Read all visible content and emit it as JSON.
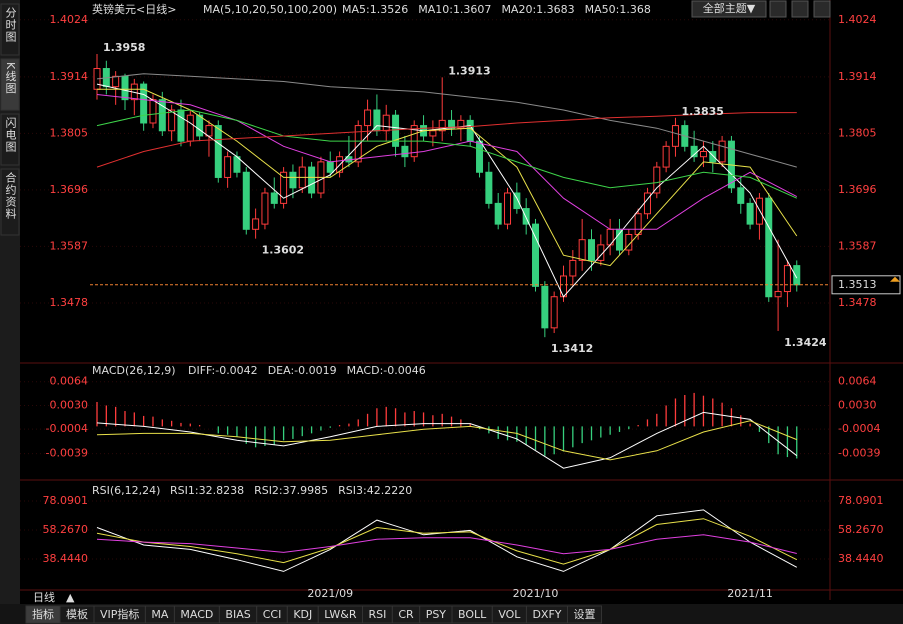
{
  "chart_data": [
    {
      "type": "candlestick",
      "title": "英镑美元<日线>",
      "indicator": "MA(5,10,20,50,100,200)",
      "up_color": "#ff3c3c",
      "down_color": "#36d07e",
      "ylim": [
        1.3368,
        1.4039
      ],
      "yticks": [
        1.4024,
        1.3914,
        1.3805,
        1.3696,
        1.3587,
        1.3478
      ],
      "grid": true,
      "candles": [
        [
          1.389,
          1.3958,
          1.387,
          1.393
        ],
        [
          1.393,
          1.3945,
          1.388,
          1.3895
        ],
        [
          1.3895,
          1.3925,
          1.386,
          1.3915
        ],
        [
          1.3915,
          1.392,
          1.385,
          1.387
        ],
        [
          1.387,
          1.391,
          1.384,
          1.39
        ],
        [
          1.39,
          1.3905,
          1.381,
          1.3825
        ],
        [
          1.3825,
          1.388,
          1.3815,
          1.387
        ],
        [
          1.387,
          1.3885,
          1.38,
          1.381
        ],
        [
          1.381,
          1.386,
          1.379,
          1.385
        ],
        [
          1.385,
          1.387,
          1.378,
          1.379
        ],
        [
          1.379,
          1.385,
          1.378,
          1.384
        ],
        [
          1.384,
          1.3845,
          1.379,
          1.38
        ],
        [
          1.38,
          1.383,
          1.376,
          1.382
        ],
        [
          1.382,
          1.383,
          1.371,
          1.372
        ],
        [
          1.372,
          1.377,
          1.37,
          1.376
        ],
        [
          1.376,
          1.377,
          1.372,
          1.373
        ],
        [
          1.373,
          1.374,
          1.361,
          1.362
        ],
        [
          1.362,
          1.366,
          1.3602,
          1.364
        ],
        [
          1.363,
          1.37,
          1.362,
          1.369
        ],
        [
          1.369,
          1.372,
          1.366,
          1.367
        ],
        [
          1.367,
          1.374,
          1.366,
          1.373
        ],
        [
          1.373,
          1.3745,
          1.368,
          1.37
        ],
        [
          1.37,
          1.376,
          1.369,
          1.374
        ],
        [
          1.374,
          1.375,
          1.368,
          1.369
        ],
        [
          1.369,
          1.376,
          1.368,
          1.375
        ],
        [
          1.375,
          1.377,
          1.372,
          1.373
        ],
        [
          1.373,
          1.377,
          1.372,
          1.376
        ],
        [
          1.376,
          1.38,
          1.374,
          1.375
        ],
        [
          1.375,
          1.383,
          1.374,
          1.382
        ],
        [
          1.382,
          1.387,
          1.379,
          1.385
        ],
        [
          1.385,
          1.388,
          1.38,
          1.381
        ],
        [
          1.381,
          1.386,
          1.379,
          1.384
        ],
        [
          1.384,
          1.385,
          1.376,
          1.378
        ],
        [
          1.378,
          1.38,
          1.374,
          1.376
        ],
        [
          1.376,
          1.383,
          1.375,
          1.382
        ],
        [
          1.382,
          1.384,
          1.379,
          1.38
        ],
        [
          1.38,
          1.383,
          1.378,
          1.381
        ],
        [
          1.381,
          1.3913,
          1.379,
          1.383
        ],
        [
          1.383,
          1.385,
          1.38,
          1.3815
        ],
        [
          1.3815,
          1.384,
          1.379,
          1.383
        ],
        [
          1.383,
          1.384,
          1.378,
          1.379
        ],
        [
          1.379,
          1.38,
          1.372,
          1.373
        ],
        [
          1.373,
          1.375,
          1.366,
          1.367
        ],
        [
          1.367,
          1.369,
          1.362,
          1.363
        ],
        [
          1.363,
          1.37,
          1.362,
          1.369
        ],
        [
          1.369,
          1.371,
          1.365,
          1.366
        ],
        [
          1.366,
          1.368,
          1.361,
          1.363
        ],
        [
          1.363,
          1.364,
          1.35,
          1.351
        ],
        [
          1.351,
          1.352,
          1.3412,
          1.343
        ],
        [
          1.343,
          1.35,
          1.342,
          1.349
        ],
        [
          1.349,
          1.355,
          1.348,
          1.353
        ],
        [
          1.353,
          1.358,
          1.351,
          1.356
        ],
        [
          1.356,
          1.364,
          1.354,
          1.36
        ],
        [
          1.36,
          1.362,
          1.354,
          1.356
        ],
        [
          1.356,
          1.361,
          1.355,
          1.359
        ],
        [
          1.359,
          1.364,
          1.357,
          1.362
        ],
        [
          1.362,
          1.364,
          1.357,
          1.358
        ],
        [
          1.358,
          1.362,
          1.357,
          1.361
        ],
        [
          1.361,
          1.366,
          1.36,
          1.365
        ],
        [
          1.365,
          1.37,
          1.364,
          1.369
        ],
        [
          1.369,
          1.375,
          1.368,
          1.374
        ],
        [
          1.374,
          1.379,
          1.373,
          1.378
        ],
        [
          1.378,
          1.3835,
          1.376,
          1.382
        ],
        [
          1.382,
          1.383,
          1.377,
          1.378
        ],
        [
          1.378,
          1.381,
          1.375,
          1.376
        ],
        [
          1.376,
          1.379,
          1.374,
          1.377
        ],
        [
          1.377,
          1.379,
          1.373,
          1.375
        ],
        [
          1.375,
          1.38,
          1.374,
          1.379
        ],
        [
          1.379,
          1.38,
          1.369,
          1.37
        ],
        [
          1.37,
          1.372,
          1.365,
          1.367
        ],
        [
          1.367,
          1.368,
          1.362,
          1.363
        ],
        [
          1.363,
          1.369,
          1.36,
          1.368
        ],
        [
          1.368,
          1.369,
          1.348,
          1.349
        ],
        [
          1.349,
          1.36,
          1.3424,
          1.35
        ],
        [
          1.35,
          1.356,
          1.347,
          1.355
        ],
        [
          1.355,
          1.356,
          1.35,
          1.3513
        ]
      ],
      "categories": [
        null,
        null,
        null,
        null,
        null,
        null,
        null,
        null,
        null,
        null,
        null,
        null,
        null,
        null,
        null,
        null,
        null,
        null,
        null,
        null,
        null,
        null,
        null,
        null,
        null,
        "2021/09",
        null,
        null,
        null,
        null,
        null,
        null,
        null,
        null,
        null,
        null,
        null,
        null,
        null,
        null,
        null,
        null,
        null,
        null,
        null,
        null,
        null,
        "2021/10",
        null,
        null,
        null,
        null,
        null,
        null,
        null,
        null,
        null,
        null,
        null,
        null,
        null,
        null,
        null,
        null,
        null,
        null,
        null,
        null,
        null,
        null,
        "2021/11",
        null,
        null,
        null,
        null,
        null
      ],
      "x": [
        0,
        5,
        10,
        15,
        20,
        25,
        30,
        35,
        40,
        45,
        50,
        55,
        60,
        65,
        70,
        75
      ],
      "series": [
        {
          "name": "MA5:1.3526",
          "color": "#ffffff",
          "values": [
            1.39,
            1.388,
            1.3825,
            1.376,
            1.368,
            1.3725,
            1.382,
            1.381,
            1.382,
            1.368,
            1.349,
            1.359,
            1.37,
            1.378,
            1.369,
            1.3526
          ]
        },
        {
          "name": "MA10:1.3607",
          "color": "#e8e04a",
          "values": [
            1.389,
            1.389,
            1.385,
            1.379,
            1.372,
            1.372,
            1.378,
            1.381,
            1.3815,
            1.374,
            1.357,
            1.355,
            1.365,
            1.375,
            1.374,
            1.3607
          ]
        },
        {
          "name": "MA20:1.3683",
          "color": "#e040e0",
          "values": [
            1.388,
            1.387,
            1.386,
            1.383,
            1.378,
            1.375,
            1.376,
            1.377,
            1.379,
            1.377,
            1.368,
            1.362,
            1.362,
            1.368,
            1.373,
            1.3683
          ]
        },
        {
          "name": "MA50:1.368",
          "color": "#3ed44a",
          "values": [
            1.382,
            1.384,
            1.385,
            1.383,
            1.38,
            1.379,
            1.379,
            1.379,
            1.378,
            1.375,
            1.372,
            1.37,
            1.371,
            1.373,
            1.372,
            1.368
          ]
        },
        {
          "color": "#8a8a8a",
          "values": [
            1.391,
            1.392,
            1.3915,
            1.391,
            1.3905,
            1.3895,
            1.389,
            1.3885,
            1.3875,
            1.3865,
            1.385,
            1.383,
            1.3815,
            1.379,
            1.3765,
            1.374
          ]
        },
        {
          "color": "#e03030",
          "values": [
            1.374,
            1.377,
            1.379,
            1.3795,
            1.38,
            1.3805,
            1.381,
            1.3815,
            1.3818,
            1.3825,
            1.383,
            1.3835,
            1.3838,
            1.3842,
            1.3845,
            1.3845
          ]
        }
      ],
      "annotations": [
        {
          "text": "1.3958",
          "at": 0,
          "side": "high"
        },
        {
          "text": "1.3913",
          "at": 37,
          "side": "high"
        },
        {
          "text": "1.3835",
          "at": 62,
          "side": "high"
        },
        {
          "text": "1.3602",
          "at": 17,
          "side": "low"
        },
        {
          "text": "1.3412",
          "at": 48,
          "side": "low"
        },
        {
          "text": "1.3424",
          "at": 73,
          "side": "low"
        }
      ]
    },
    {
      "type": "macd",
      "title": "MACD(26,12,9)",
      "ylim": [
        -0.0074,
        0.0088
      ],
      "yticks": [
        0.0064,
        {
          "value": 0.003,
          "label": "0.0030"
        },
        -0.0004,
        -0.0039
      ],
      "histogram": {
        "name": "MACD:-0.0046",
        "color": "#e040e0",
        "up_color": "#ff3c3c",
        "down_color": "#36d07e",
        "values": [
          0.0035,
          0.003,
          0.0028,
          0.0022,
          0.002,
          0.0015,
          0.0014,
          0.001,
          0.0008,
          0.0005,
          0.0004,
          0.0002,
          0.0,
          -0.001,
          -0.0012,
          -0.0015,
          -0.0025,
          -0.003,
          -0.0028,
          -0.0026,
          -0.002,
          -0.0018,
          -0.0014,
          -0.001,
          -0.0006,
          -0.0002,
          0.0002,
          0.0004,
          0.001,
          0.0018,
          0.0026,
          0.0028,
          0.0026,
          0.002,
          0.0022,
          0.002,
          0.0016,
          0.0018,
          0.0014,
          0.001,
          0.0004,
          -0.0004,
          -0.001,
          -0.0018,
          -0.002,
          -0.0022,
          -0.0026,
          -0.0034,
          -0.0042,
          -0.004,
          -0.0036,
          -0.003,
          -0.0024,
          -0.002,
          -0.0016,
          -0.0012,
          -0.0008,
          -0.0004,
          0.0002,
          0.001,
          0.0018,
          0.003,
          0.004,
          0.0045,
          0.0048,
          0.0044,
          0.004,
          0.0034,
          0.0026,
          0.0016,
          0.0004,
          -0.0008,
          -0.0024,
          -0.004,
          -0.0044,
          -0.0046
        ]
      },
      "x": [
        0,
        5,
        10,
        15,
        20,
        25,
        30,
        35,
        40,
        45,
        50,
        55,
        60,
        65,
        70,
        75
      ],
      "series": [
        {
          "name": "DIFF:-0.0042",
          "color": "#ffffff",
          "values": [
            0.0005,
            0.0,
            -0.0008,
            -0.002,
            -0.0028,
            -0.0015,
            0.0,
            0.0004,
            0.0004,
            -0.0018,
            -0.006,
            -0.0045,
            -0.001,
            0.002,
            0.001,
            -0.0042
          ]
        },
        {
          "name": "DEA:-0.0019",
          "color": "#e8e04a",
          "values": [
            -0.0012,
            -0.001,
            -0.001,
            -0.0015,
            -0.0022,
            -0.002,
            -0.0012,
            -0.0004,
            0.0,
            -0.001,
            -0.0035,
            -0.0048,
            -0.0035,
            -0.0008,
            0.0008,
            -0.0019
          ]
        }
      ]
    },
    {
      "type": "rsi",
      "title": "RSI(6,12,24)",
      "ylim": [
        17.3,
        89.0
      ],
      "yticks": [
        78.0901,
        {
          "value": 58.267,
          "label": "58.2670"
        },
        {
          "value": 38.444,
          "label": "38.4440"
        }
      ],
      "x": [
        0,
        5,
        10,
        15,
        20,
        25,
        30,
        35,
        40,
        45,
        50,
        55,
        60,
        65,
        70,
        75
      ],
      "series": [
        {
          "name": "RSI1:32.8238",
          "color": "#ffffff",
          "values": [
            60,
            48,
            45,
            38,
            30,
            45,
            65,
            55,
            58,
            40,
            30,
            45,
            68,
            72,
            50,
            32.8238
          ]
        },
        {
          "name": "RSI2:37.9985",
          "color": "#e8e04a",
          "values": [
            56,
            50,
            47,
            42,
            36,
            46,
            60,
            56,
            57,
            44,
            35,
            45,
            62,
            66,
            54,
            37.9985
          ]
        },
        {
          "name": "RSI3:42.2220",
          "color": "#e040e0",
          "values": [
            52,
            50,
            49,
            46,
            43,
            47,
            52,
            53,
            53,
            48,
            42,
            45,
            52,
            55,
            50,
            42.222
          ]
        }
      ]
    }
  ],
  "ui": {
    "side_tabs": [
      "分时图",
      "K线图",
      "闪电图",
      "合约资料"
    ],
    "theme_button": "全部主题▼",
    "period": "日线",
    "bottom_tabs": [
      "指标",
      "模板",
      "VIP指标",
      "MA",
      "MACD",
      "BIAS",
      "CCI",
      "KDJ",
      "LW&R",
      "RSI",
      "CR",
      "PSY",
      "BOLL",
      "VOL",
      "DXFY",
      "设置"
    ]
  }
}
